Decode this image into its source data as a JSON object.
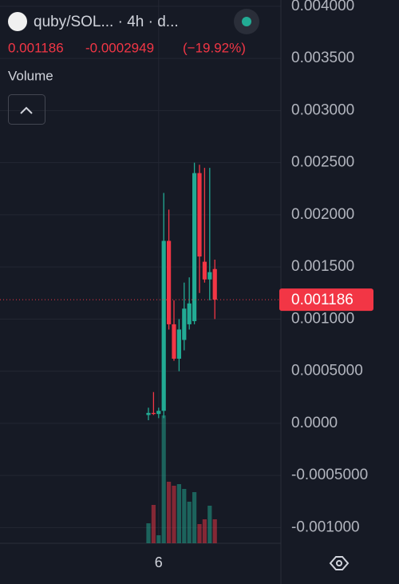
{
  "chart_data": {
    "type": "candlestick",
    "title": "quby/SOL... · 4h · d...",
    "last_price": 0.001186,
    "change": -0.0002949,
    "change_percent": "(−19.92%)",
    "indicator": "Volume",
    "categories": [
      null,
      null,
      "6",
      null,
      null,
      null,
      null,
      null,
      null,
      null,
      null,
      null,
      null,
      null
    ],
    "open": [
      8e-05,
      0.0001,
      9e-05,
      0.00012,
      0.00175,
      0.00095,
      0.00062,
      0.0008,
      0.00095,
      0.00098,
      0.0024,
      0.00155,
      0.00138,
      0.00148
    ],
    "high": [
      0.00015,
      0.0003,
      0.00015,
      0.00221,
      0.00205,
      0.00118,
      0.001,
      0.00135,
      0.0014,
      0.0025,
      0.00248,
      0.00245,
      0.00245,
      0.00157
    ],
    "low": [
      3e-05,
      8e-05,
      5e-05,
      5e-05,
      0.0009,
      0.0006,
      0.0005,
      0.0007,
      0.0009,
      0.00095,
      0.00125,
      0.00135,
      0.00118,
      0.001
    ],
    "close": [
      0.0001,
      9e-05,
      0.00012,
      0.00175,
      0.00095,
      0.00062,
      0.0009,
      0.0011,
      0.00115,
      0.0024,
      0.0016,
      0.00138,
      0.00145,
      0.001186
    ],
    "volume": [
      25,
      48,
      10,
      160,
      77,
      72,
      74,
      68,
      52,
      64,
      24,
      30,
      47,
      30
    ],
    "up_color": "#22ab94",
    "down_color": "#f23645",
    "ylim": [
      -0.00115,
      0.00406
    ],
    "yticks": [
      {
        "value": 0.004,
        "label": "0.004000"
      },
      {
        "value": 0.0035,
        "label": "0.003500"
      },
      {
        "value": 0.003,
        "label": "0.003000"
      },
      {
        "value": 0.0025,
        "label": "0.002500"
      },
      {
        "value": 0.002,
        "label": "0.002000"
      },
      {
        "value": 0.0015,
        "label": "0.001500"
      },
      {
        "value": 0.001,
        "label": "0.001000"
      },
      {
        "value": 0.0005,
        "label": "0.0005000"
      },
      {
        "value": 0,
        "label": "0.0000"
      },
      {
        "value": -0.0005,
        "label": "-0.0005000"
      },
      {
        "value": -0.001,
        "label": "-0.001000"
      }
    ],
    "grid": true
  }
}
